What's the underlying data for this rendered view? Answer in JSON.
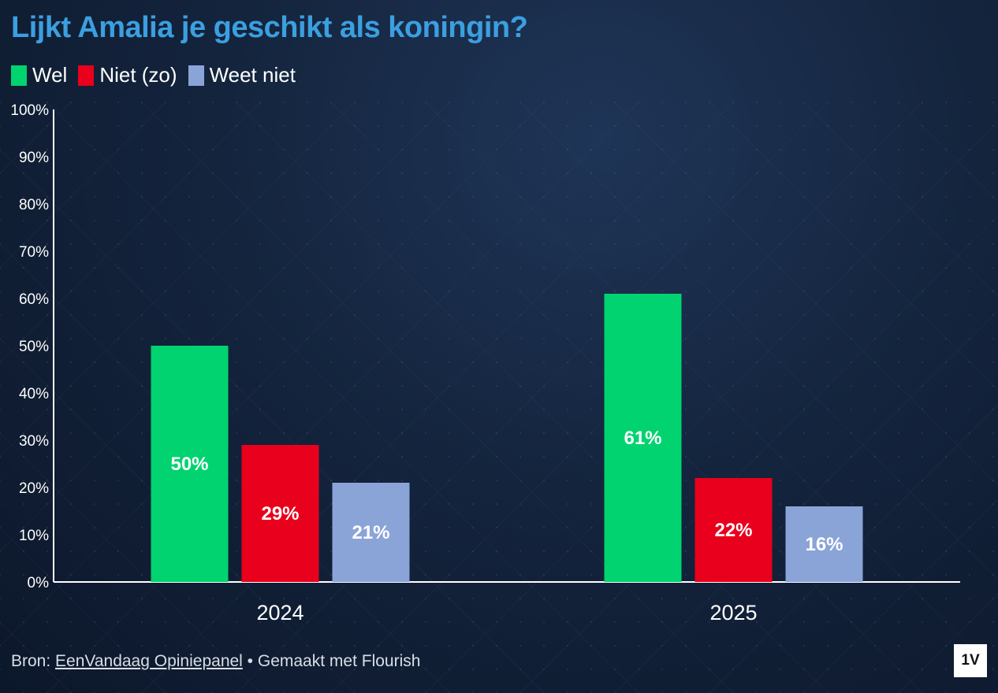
{
  "title": "Lijkt Amalia je geschikt als koningin?",
  "colors": {
    "title": "#3b9fe0",
    "wel": "#00d36f",
    "niet": "#e8001c",
    "weet_niet": "#8aa4d8",
    "axis": "#ffffff"
  },
  "legend": [
    {
      "label": "Wel",
      "color": "#00d36f"
    },
    {
      "label": "Niet (zo)",
      "color": "#e8001c"
    },
    {
      "label": "Weet niet",
      "color": "#8aa4d8"
    }
  ],
  "chart_data": {
    "type": "bar",
    "title": "Lijkt Amalia je geschikt als koningin?",
    "categories": [
      "2024",
      "2025"
    ],
    "series": [
      {
        "name": "Wel",
        "values": [
          50,
          61
        ],
        "color": "#00d36f"
      },
      {
        "name": "Niet (zo)",
        "values": [
          29,
          22
        ],
        "color": "#e8001c"
      },
      {
        "name": "Weet niet",
        "values": [
          21,
          16
        ],
        "color": "#8aa4d8"
      }
    ],
    "data_labels": [
      [
        "50%",
        "61%"
      ],
      [
        "29%",
        "22%"
      ],
      [
        "21%",
        "16%"
      ]
    ],
    "ylim": [
      0,
      100
    ],
    "yticks": [
      "0%",
      "10%",
      "20%",
      "30%",
      "40%",
      "50%",
      "60%",
      "70%",
      "80%",
      "90%",
      "100%"
    ],
    "xlabel": "",
    "ylabel": "",
    "grid": false,
    "legend_position": "top-left"
  },
  "footer": {
    "prefix": "Bron: ",
    "source_link": "EenVandaag Opiniepanel",
    "separator": " • ",
    "made_with": "Gemaakt met Flourish"
  },
  "logo": "1V"
}
